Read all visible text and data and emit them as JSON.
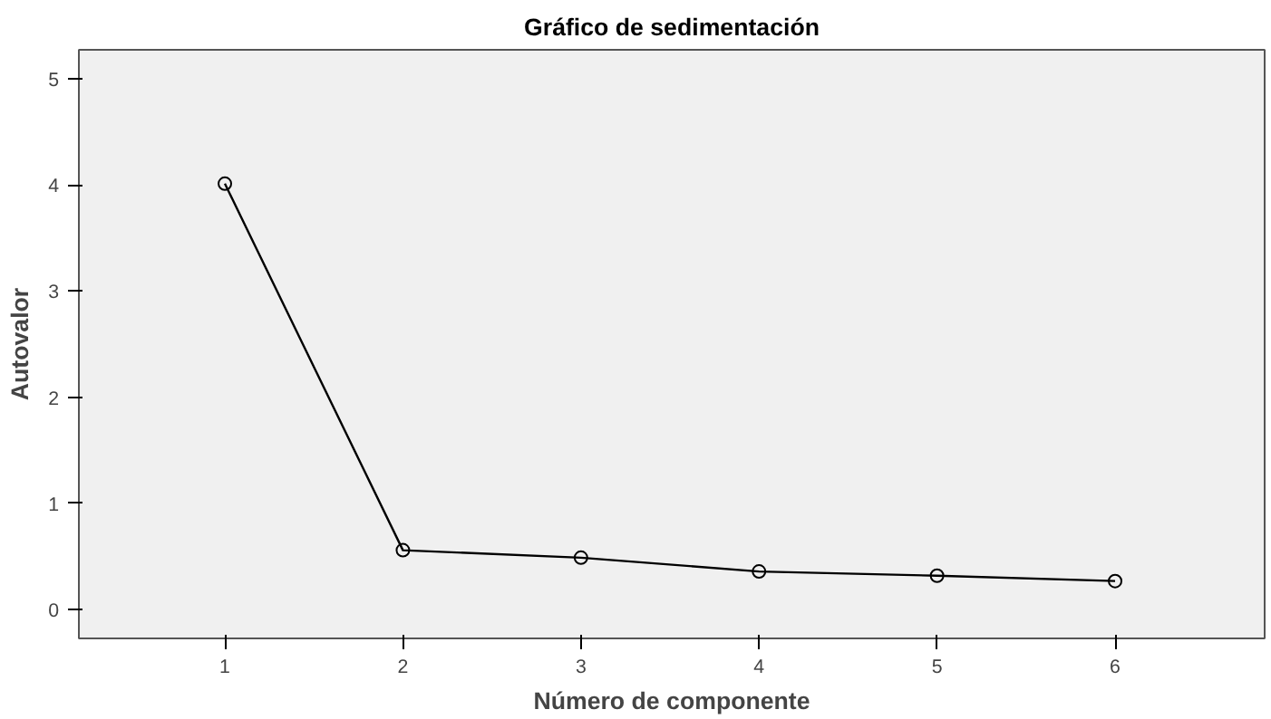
{
  "chart_data": {
    "type": "line",
    "title": "Gráfico de sedimentación",
    "xlabel": "Número de componente",
    "ylabel": "Autovalor",
    "x": [
      1,
      2,
      3,
      4,
      5,
      6
    ],
    "series": [
      {
        "color": "#000000",
        "values": [
          4.01,
          0.56,
          0.49,
          0.36,
          0.32,
          0.27
        ]
      }
    ],
    "xlim": [
      0.18,
      6.84
    ],
    "ylim": [
      -0.27,
      5.27
    ],
    "xticks": [
      1,
      2,
      3,
      4,
      5,
      6
    ],
    "yticks": [
      0,
      1,
      2,
      3,
      4,
      5
    ],
    "grid": false,
    "marker": "circle",
    "line_style": "solid"
  }
}
